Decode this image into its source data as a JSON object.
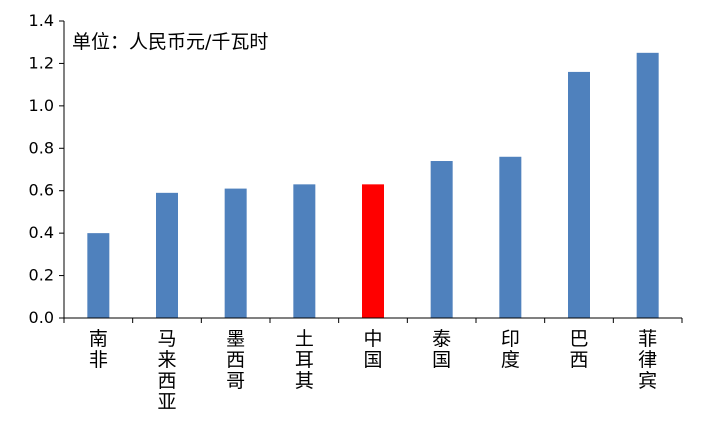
{
  "chart_data": {
    "type": "bar",
    "title": "",
    "unit_label": "单位：人民币元/千瓦时",
    "xlabel": "",
    "ylabel": "",
    "ylim": [
      0,
      1.4
    ],
    "yticks": [
      "0.0",
      "0.2",
      "0.4",
      "0.6",
      "0.8",
      "1.0",
      "1.2",
      "1.4"
    ],
    "grid": false,
    "categories": [
      "南非",
      "马来西亚",
      "墨西哥",
      "土耳其",
      "中国",
      "泰国",
      "印度",
      "巴西",
      "菲律宾"
    ],
    "values": [
      0.4,
      0.59,
      0.61,
      0.63,
      0.63,
      0.74,
      0.76,
      1.16,
      1.25
    ],
    "bar_color": "#4f81bd",
    "highlight_color": "#ff0000",
    "highlight_category": "中国"
  }
}
